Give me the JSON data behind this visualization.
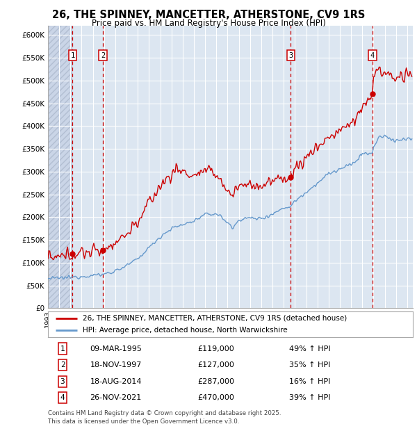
{
  "title": "26, THE SPINNEY, MANCETTER, ATHERSTONE, CV9 1RS",
  "subtitle": "Price paid vs. HM Land Registry's House Price Index (HPI)",
  "ylim": [
    0,
    620000
  ],
  "yticks": [
    0,
    50000,
    100000,
    150000,
    200000,
    250000,
    300000,
    350000,
    400000,
    450000,
    500000,
    550000,
    600000
  ],
  "xlim_start": 1993.0,
  "xlim_end": 2025.5,
  "bg_color": "#ffffff",
  "plot_bg_color": "#dce6f1",
  "grid_color": "#ffffff",
  "sale_dates": [
    1995.19,
    1997.89,
    2014.63,
    2021.91
  ],
  "sale_prices": [
    119000,
    127000,
    287000,
    470000
  ],
  "legend_line1": "26, THE SPINNEY, MANCETTER, ATHERSTONE, CV9 1RS (detached house)",
  "legend_line2": "HPI: Average price, detached house, North Warwickshire",
  "table_data": [
    [
      "1",
      "09-MAR-1995",
      "£119,000",
      "49% ↑ HPI"
    ],
    [
      "2",
      "18-NOV-1997",
      "£127,000",
      "35% ↑ HPI"
    ],
    [
      "3",
      "18-AUG-2014",
      "£287,000",
      "16% ↑ HPI"
    ],
    [
      "4",
      "26-NOV-2021",
      "£470,000",
      "39% ↑ HPI"
    ]
  ],
  "footnote": "Contains HM Land Registry data © Crown copyright and database right 2025.\nThis data is licensed under the Open Government Licence v3.0.",
  "red_line_color": "#cc0000",
  "blue_line_color": "#6699cc",
  "vline_color": "#cc0000",
  "hpi_anchors": [
    [
      1993.0,
      65000
    ],
    [
      1994.0,
      66000
    ],
    [
      1995.2,
      68000
    ],
    [
      1996.0,
      70000
    ],
    [
      1997.9,
      74000
    ],
    [
      1999.0,
      82000
    ],
    [
      2000.0,
      93000
    ],
    [
      2001.0,
      108000
    ],
    [
      2002.0,
      133000
    ],
    [
      2003.0,
      157000
    ],
    [
      2004.0,
      175000
    ],
    [
      2005.0,
      183000
    ],
    [
      2006.0,
      192000
    ],
    [
      2007.0,
      205000
    ],
    [
      2008.0,
      208000
    ],
    [
      2008.7,
      195000
    ],
    [
      2009.5,
      175000
    ],
    [
      2010.0,
      195000
    ],
    [
      2011.0,
      198000
    ],
    [
      2012.0,
      197000
    ],
    [
      2013.0,
      207000
    ],
    [
      2014.0,
      220000
    ],
    [
      2014.6,
      224000
    ],
    [
      2015.0,
      235000
    ],
    [
      2016.0,
      255000
    ],
    [
      2017.0,
      275000
    ],
    [
      2018.0,
      295000
    ],
    [
      2019.0,
      305000
    ],
    [
      2020.0,
      315000
    ],
    [
      2020.5,
      325000
    ],
    [
      2021.0,
      340000
    ],
    [
      2021.9,
      338000
    ],
    [
      2022.0,
      355000
    ],
    [
      2022.5,
      375000
    ],
    [
      2023.0,
      378000
    ],
    [
      2023.5,
      372000
    ],
    [
      2024.0,
      368000
    ],
    [
      2024.5,
      370000
    ],
    [
      2025.3,
      372000
    ]
  ],
  "prop_anchors": [
    [
      1993.0,
      108000
    ],
    [
      1994.0,
      110000
    ],
    [
      1995.19,
      119000
    ],
    [
      1996.0,
      122000
    ],
    [
      1997.89,
      127000
    ],
    [
      1999.0,
      145000
    ],
    [
      2000.0,
      163000
    ],
    [
      2001.0,
      190000
    ],
    [
      2002.0,
      230000
    ],
    [
      2003.0,
      268000
    ],
    [
      2004.0,
      295000
    ],
    [
      2004.5,
      305000
    ],
    [
      2005.0,
      300000
    ],
    [
      2005.5,
      295000
    ],
    [
      2006.0,
      290000
    ],
    [
      2006.5,
      298000
    ],
    [
      2007.0,
      300000
    ],
    [
      2008.0,
      295000
    ],
    [
      2008.5,
      278000
    ],
    [
      2009.0,
      255000
    ],
    [
      2009.5,
      250000
    ],
    [
      2010.0,
      270000
    ],
    [
      2011.0,
      272000
    ],
    [
      2012.0,
      268000
    ],
    [
      2013.0,
      278000
    ],
    [
      2014.0,
      287000
    ],
    [
      2014.63,
      287000
    ],
    [
      2015.0,
      305000
    ],
    [
      2016.0,
      330000
    ],
    [
      2017.0,
      355000
    ],
    [
      2018.0,
      375000
    ],
    [
      2019.0,
      390000
    ],
    [
      2020.0,
      405000
    ],
    [
      2020.5,
      420000
    ],
    [
      2021.0,
      440000
    ],
    [
      2021.91,
      470000
    ],
    [
      2022.0,
      510000
    ],
    [
      2022.3,
      530000
    ],
    [
      2022.5,
      520000
    ],
    [
      2023.0,
      515000
    ],
    [
      2023.5,
      510000
    ],
    [
      2024.0,
      505000
    ],
    [
      2024.5,
      508000
    ],
    [
      2025.3,
      510000
    ]
  ]
}
